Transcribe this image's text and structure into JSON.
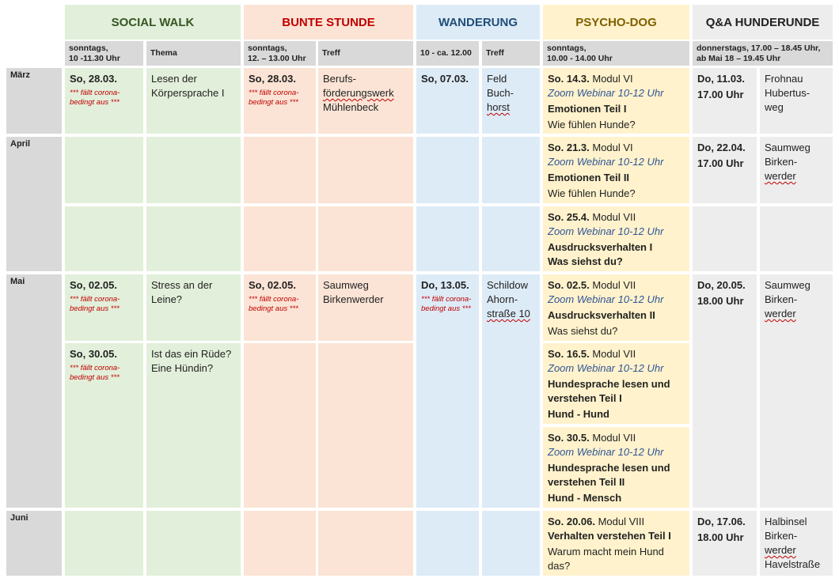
{
  "headers": {
    "social_walk": {
      "title": "SOCIAL WALK",
      "color": "#375623"
    },
    "bunte_stunde": {
      "title": "BUNTE STUNDE",
      "color": "#c00000"
    },
    "wanderung": {
      "title": "WANDERUNG",
      "color": "#1f4e79"
    },
    "psycho_dog": {
      "title": "PSYCHO-DOG",
      "color": "#806000"
    },
    "qa": {
      "title": "Q&A HUNDERUNDE",
      "color": "#222222"
    }
  },
  "subheaders": {
    "sw_time_1": "sonntags,",
    "sw_time_2": "10 -11.30 Uhr",
    "sw_thema": "Thema",
    "bs_time_1": "sonntags,",
    "bs_time_2": "12. – 13.00 Uhr",
    "bs_treff": "Treff",
    "wa_time": "10 - ca. 12.00",
    "wa_treff": "Treff",
    "pd_time_1": "sonntags,",
    "pd_time_2": "10.00 - 14.00 Uhr",
    "qa_time_1": "donnerstags, 17.00 – 18.45 Uhr,",
    "qa_time_2": "ab Mai 18 – 19.45 Uhr"
  },
  "months": {
    "maerz": "März",
    "april": "April",
    "mai": "Mai",
    "juni": "Juni"
  },
  "social_walk": {
    "maerz": {
      "date": "So, 28.03.",
      "note": "*** fällt corona-bedingt aus ***",
      "thema": "Lesen der Körpersprache I"
    },
    "mai1": {
      "date": "So, 02.05.",
      "note": "*** fällt corona-bedingt aus ***",
      "thema": "Stress an der Leine?"
    },
    "mai2": {
      "date": "So, 30.05.",
      "note": "*** fällt corona-bedingt aus ***",
      "thema_1": "Ist das ein Rüde?",
      "thema_2": "Eine Hündin?"
    }
  },
  "bunte_stunde": {
    "maerz": {
      "date": "So, 28.03.",
      "note": "*** fällt corona-bedingt aus ***",
      "treff_1": "Berufs-",
      "treff_2": "förderungswerk",
      "treff_3": "Mühlenbeck"
    },
    "mai": {
      "date": "So, 02.05.",
      "note": "*** fällt corona-bedingt aus ***",
      "treff_1": "Saumweg",
      "treff_2": "Birkenwerder"
    }
  },
  "wanderung": {
    "maerz": {
      "date": "So, 07.03.",
      "treff_1": "Feld",
      "treff_2": "Buch-",
      "treff_3": "horst"
    },
    "mai": {
      "date": "Do, 13.05.",
      "note": "*** fällt corona-bedingt aus ***",
      "treff_1": "Schildow",
      "treff_2": "Ahorn-",
      "treff_3": "straße 10"
    }
  },
  "psycho_dog": {
    "s1": {
      "date": "So. 14.3.",
      "modul": " Modul VI",
      "zoom": "Zoom Webinar 10-12 Uhr",
      "title": "Emotionen Teil I",
      "sub": "Wie fühlen Hunde?"
    },
    "s2": {
      "date": "So. 21.3.",
      "modul": " Modul VI",
      "zoom": "Zoom Webinar 10-12 Uhr",
      "title": "Emotionen Teil II",
      "sub": "Wie fühlen Hunde?"
    },
    "s3": {
      "date": "So. 25.4.",
      "modul": " Modul VII",
      "zoom": "Zoom Webinar 10-12 Uhr",
      "title": "Ausdrucksverhalten I",
      "sub": "Was siehst du?"
    },
    "s4": {
      "date": "So. 02.5.",
      "modul": " Modul VII",
      "zoom": "Zoom Webinar 10-12 Uhr",
      "title": "Ausdrucksverhalten II",
      "sub": "Was siehst du?"
    },
    "s5": {
      "date": "So. 16.5.",
      "modul": " Modul VII",
      "zoom": "Zoom Webinar 10-12 Uhr",
      "title_1": "Hundesprache lesen und",
      "title_2": "verstehen Teil I",
      "sub": "Hund - Hund"
    },
    "s6": {
      "date": "So. 30.5.",
      "modul": " Modul VII",
      "zoom": "Zoom Webinar 10-12 Uhr",
      "title_1": "Hundesprache lesen und",
      "title_2": "verstehen Teil II",
      "sub": "Hund - Mensch"
    },
    "s7": {
      "date": "So. 20.06.",
      "modul": " Modul VIII",
      "title": "Verhalten verstehen Teil I",
      "sub_1": "Warum macht mein Hund",
      "sub_2": "das?"
    }
  },
  "qa": {
    "maerz": {
      "date": "Do, 11.03.",
      "time": "17.00 Uhr",
      "treff_1": "Frohnau",
      "treff_2": "Hubertus-",
      "treff_3": "weg"
    },
    "april": {
      "date": "Do, 22.04.",
      "time": "17.00 Uhr",
      "treff_1": "Saumweg",
      "treff_2": "Birken-",
      "treff_3": "werder"
    },
    "mai": {
      "date": "Do, 20.05.",
      "time": "18.00 Uhr",
      "treff_1": "Saumweg",
      "treff_2": "Birken-",
      "treff_3": "werder"
    },
    "juni": {
      "date": "Do, 17.06.",
      "time": "18.00 Uhr",
      "treff_1": "Halbinsel",
      "treff_2": "Birken-",
      "treff_3": "werder",
      "treff_4": "Havelstraße"
    }
  }
}
